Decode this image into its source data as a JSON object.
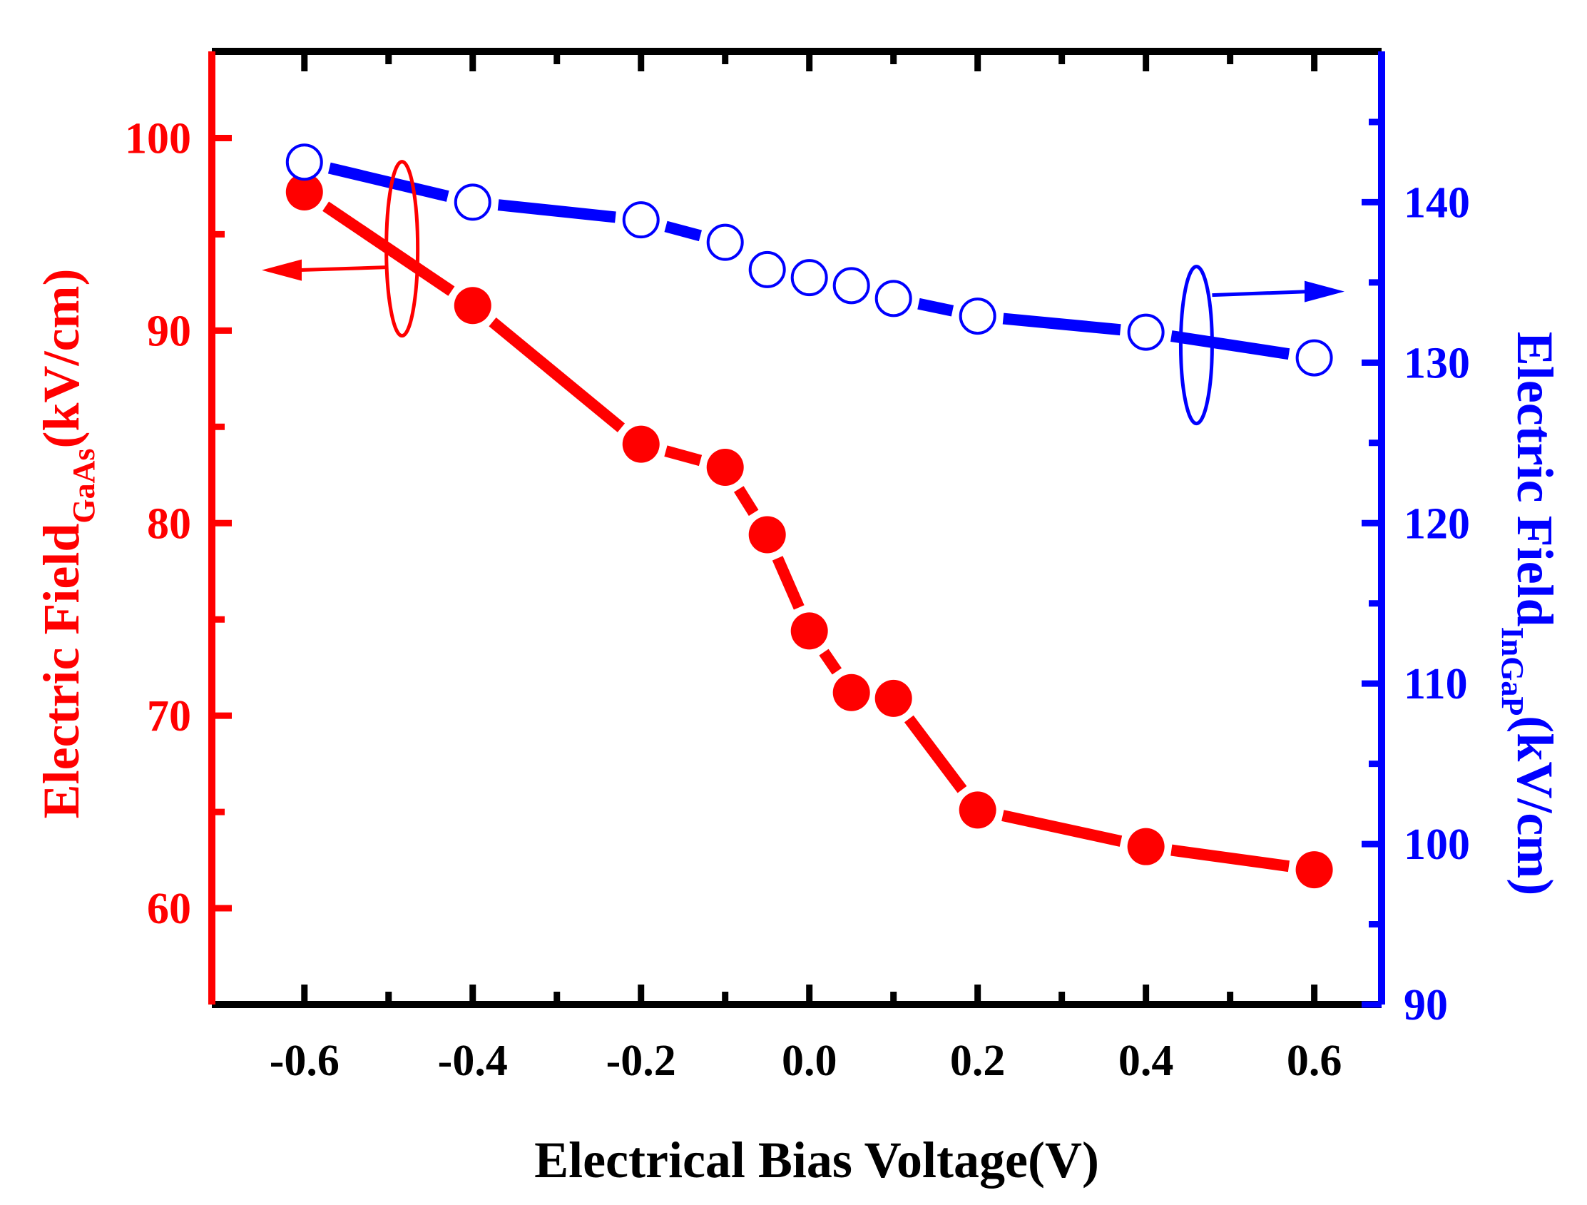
{
  "chart_data": {
    "type": "line",
    "x": [
      -0.6,
      -0.4,
      -0.2,
      -0.1,
      -0.05,
      0.0,
      0.05,
      0.1,
      0.2,
      0.4,
      0.6
    ],
    "series": [
      {
        "name": "Electric Field GaAs",
        "axis": "left",
        "color": "#ff0000",
        "marker": "filled-circle",
        "values": [
          97.2,
          91.3,
          84.1,
          82.9,
          79.4,
          74.4,
          71.2,
          70.9,
          65.1,
          63.2,
          62.0
        ]
      },
      {
        "name": "Electric Field InGaP",
        "axis": "right",
        "color": "#0000ff",
        "marker": "open-circle",
        "values": [
          142.5,
          140.0,
          138.9,
          137.5,
          135.8,
          135.3,
          134.8,
          134.0,
          132.9,
          131.9,
          130.3
        ]
      }
    ],
    "xlabel": "Electrical Bias Voltage(V)",
    "xlim": [
      -0.71,
      0.68
    ],
    "xticks": [
      -0.6,
      -0.4,
      -0.2,
      0.0,
      0.2,
      0.4,
      0.6
    ],
    "xtick_labels": [
      "-0.6",
      "-0.4",
      "-0.2",
      "0.0",
      "0.2",
      "0.4",
      "0.6"
    ],
    "ylabel_left": {
      "main": "Electric Field",
      "sub": "GaAs",
      "unit": "(kV/cm)"
    },
    "ylim_left": [
      55,
      104.5
    ],
    "yticks_left": [
      60,
      70,
      80,
      90,
      100
    ],
    "ylabel_right": {
      "main": "Electric Field",
      "sub": "InGaP",
      "unit": "(kV/cm)"
    },
    "ylim_right": [
      90,
      149.4
    ],
    "yticks_right": [
      90,
      100,
      110,
      120,
      130,
      140
    ],
    "colors": {
      "left": "#ff0000",
      "right": "#0000ff",
      "frame": "#000000"
    }
  }
}
